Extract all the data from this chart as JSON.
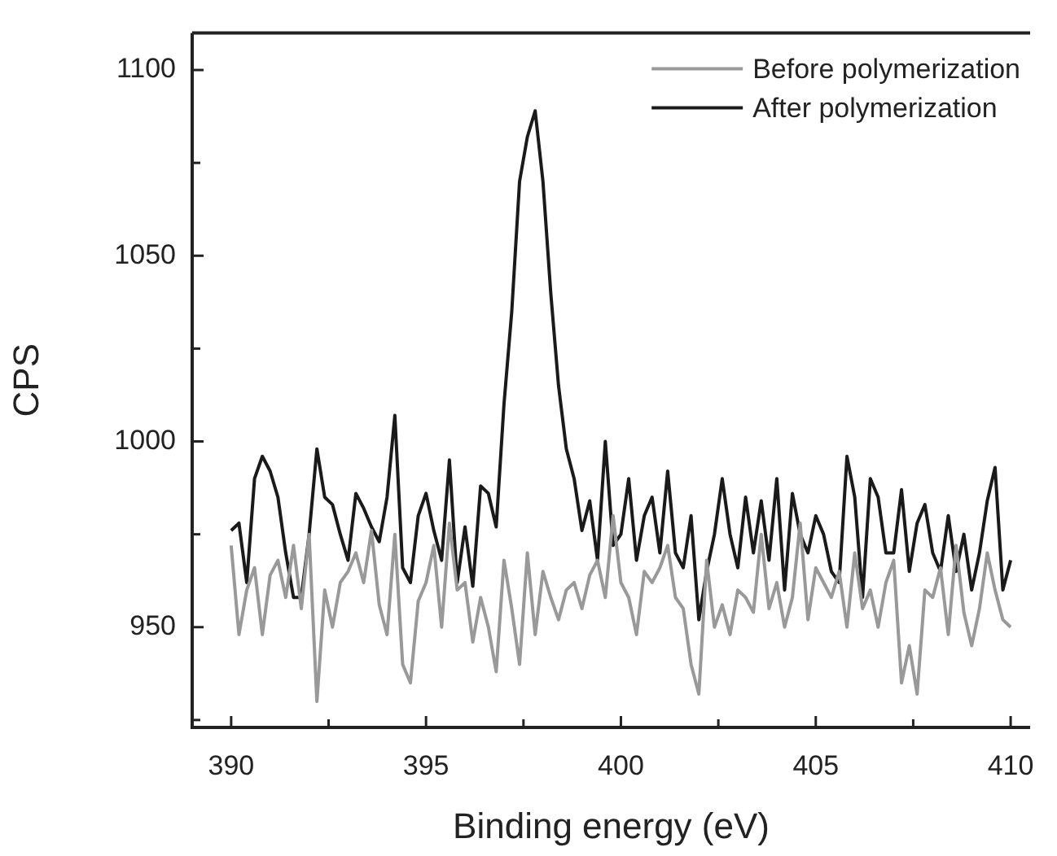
{
  "chart_data": {
    "type": "line",
    "xlabel": "Binding energy (eV)",
    "ylabel": "CPS",
    "x": [
      390,
      390.2,
      390.4,
      390.6,
      390.8,
      391,
      391.2,
      391.4,
      391.6,
      391.8,
      392,
      392.2,
      392.4,
      392.6,
      392.8,
      393,
      393.2,
      393.4,
      393.6,
      393.8,
      394,
      394.2,
      394.4,
      394.6,
      394.8,
      395,
      395.2,
      395.4,
      395.6,
      395.8,
      396,
      396.2,
      396.4,
      396.6,
      396.8,
      397,
      397.2,
      397.4,
      397.6,
      397.8,
      398,
      398.2,
      398.4,
      398.6,
      398.8,
      399,
      399.2,
      399.4,
      399.6,
      399.8,
      400,
      400.2,
      400.4,
      400.6,
      400.8,
      401,
      401.2,
      401.4,
      401.6,
      401.8,
      402,
      402.2,
      402.4,
      402.6,
      402.8,
      403,
      403.2,
      403.4,
      403.6,
      403.8,
      404,
      404.2,
      404.4,
      404.6,
      404.8,
      405,
      405.2,
      405.4,
      405.6,
      405.8,
      406,
      406.2,
      406.4,
      406.6,
      406.8,
      407,
      407.2,
      407.4,
      407.6,
      407.8,
      408,
      408.2,
      408.4,
      408.6,
      408.8,
      409,
      409.2,
      409.4,
      409.6,
      409.8,
      410
    ],
    "series": [
      {
        "name": "Before polymerization",
        "color": "#999999",
        "values": [
          972,
          948,
          960,
          966,
          948,
          964,
          968,
          958,
          972,
          955,
          975,
          930,
          960,
          950,
          962,
          965,
          970,
          962,
          976,
          956,
          948,
          975,
          940,
          935,
          957,
          962,
          972,
          950,
          978,
          960,
          962,
          946,
          958,
          950,
          938,
          968,
          955,
          940,
          970,
          948,
          965,
          958,
          952,
          960,
          962,
          955,
          964,
          968,
          958,
          980,
          962,
          958,
          948,
          965,
          962,
          966,
          972,
          958,
          955,
          940,
          932,
          968,
          950,
          956,
          948,
          960,
          958,
          954,
          975,
          955,
          962,
          950,
          958,
          978,
          952,
          966,
          962,
          958,
          965,
          950,
          970,
          955,
          960,
          950,
          962,
          968,
          935,
          945,
          932,
          960,
          958,
          966,
          948,
          972,
          954,
          945,
          955,
          970,
          960,
          952,
          950
        ]
      },
      {
        "name": "After polymerization",
        "color": "#1a1a1a",
        "values": [
          976,
          978,
          962,
          990,
          996,
          992,
          985,
          970,
          958,
          958,
          975,
          998,
          985,
          983,
          975,
          968,
          986,
          982,
          977,
          973,
          985,
          1007,
          966,
          962,
          980,
          986,
          976,
          968,
          995,
          962,
          977,
          961,
          988,
          986,
          977,
          1010,
          1035,
          1070,
          1082,
          1089,
          1070,
          1040,
          1015,
          998,
          990,
          976,
          984,
          968,
          1000,
          972,
          975,
          990,
          968,
          980,
          985,
          970,
          992,
          970,
          966,
          980,
          952,
          965,
          975,
          990,
          975,
          966,
          985,
          970,
          984,
          968,
          990,
          960,
          986,
          975,
          970,
          980,
          975,
          965,
          962,
          996,
          985,
          958,
          990,
          985,
          970,
          970,
          987,
          965,
          978,
          983,
          970,
          965,
          980,
          965,
          975,
          960,
          970,
          984,
          993,
          960,
          968
        ]
      }
    ],
    "xlim": [
      389,
      410.5
    ],
    "xticks": [
      390,
      {
        "value": 392.5,
        "label": null
      },
      395,
      {
        "value": 397.5,
        "label": null
      },
      400,
      {
        "value": 402.5,
        "label": null
      },
      405,
      {
        "value": 407.5,
        "label": null
      },
      410
    ],
    "ylim": [
      923,
      1110
    ],
    "yticks": [
      {
        "value": 925,
        "label": null
      },
      950,
      {
        "value": 975,
        "label": null
      },
      1000,
      {
        "value": 1025,
        "label": null
      },
      1050,
      {
        "value": 1075,
        "label": null
      },
      1100
    ],
    "legend": "top right",
    "marker": "none",
    "line_style": "solid"
  }
}
